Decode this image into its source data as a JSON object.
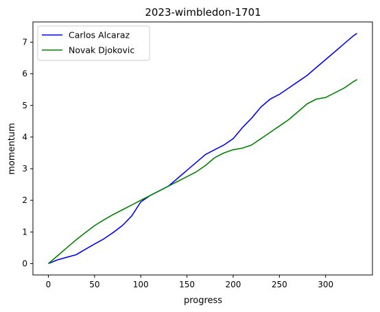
{
  "chart_data": {
    "type": "line",
    "title": "2023-wimbledon-1701",
    "xlabel": "progress",
    "ylabel": "momentum",
    "xlim": [
      -16.7,
      350.7
    ],
    "ylim": [
      -0.36,
      7.64
    ],
    "xticks": [
      0,
      50,
      100,
      150,
      200,
      250,
      300
    ],
    "yticks": [
      0,
      1,
      2,
      3,
      4,
      5,
      6,
      7
    ],
    "grid": false,
    "legend_position": "top-left",
    "series": [
      {
        "name": "Carlos Alcaraz",
        "color": "#0000ff",
        "x": [
          0,
          10,
          20,
          30,
          40,
          50,
          60,
          70,
          80,
          90,
          100,
          110,
          120,
          130,
          140,
          150,
          160,
          170,
          180,
          190,
          200,
          210,
          220,
          230,
          240,
          250,
          260,
          270,
          280,
          290,
          300,
          310,
          320,
          330,
          334
        ],
        "y": [
          0.0,
          0.12,
          0.2,
          0.28,
          0.45,
          0.62,
          0.78,
          0.98,
          1.2,
          1.5,
          1.95,
          2.15,
          2.3,
          2.45,
          2.7,
          2.95,
          3.2,
          3.45,
          3.6,
          3.75,
          3.95,
          4.3,
          4.6,
          4.95,
          5.2,
          5.35,
          5.55,
          5.75,
          5.95,
          6.2,
          6.45,
          6.7,
          6.95,
          7.2,
          7.28
        ]
      },
      {
        "name": "Novak Djokovic",
        "color": "#008000",
        "x": [
          0,
          10,
          20,
          30,
          40,
          50,
          60,
          70,
          80,
          90,
          100,
          110,
          120,
          130,
          140,
          150,
          160,
          170,
          180,
          190,
          200,
          210,
          220,
          230,
          240,
          250,
          260,
          270,
          280,
          290,
          300,
          310,
          320,
          330,
          334
        ],
        "y": [
          0.0,
          0.25,
          0.5,
          0.75,
          0.98,
          1.2,
          1.38,
          1.55,
          1.7,
          1.85,
          2.0,
          2.15,
          2.3,
          2.45,
          2.6,
          2.75,
          2.9,
          3.1,
          3.35,
          3.5,
          3.6,
          3.65,
          3.75,
          3.95,
          4.15,
          4.35,
          4.55,
          4.8,
          5.05,
          5.2,
          5.25,
          5.4,
          5.55,
          5.75,
          5.82
        ]
      }
    ]
  }
}
